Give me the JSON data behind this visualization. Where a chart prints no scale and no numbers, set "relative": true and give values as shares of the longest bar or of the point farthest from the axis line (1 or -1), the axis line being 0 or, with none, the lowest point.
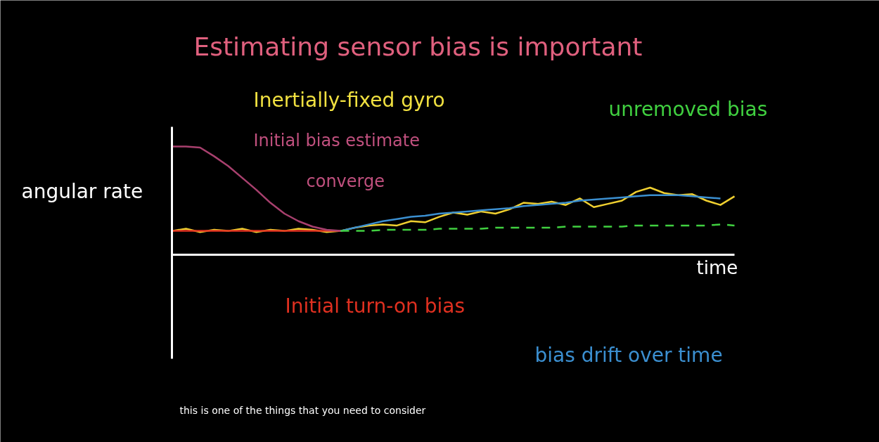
{
  "chart_data": {
    "type": "line",
    "relative": true,
    "title": "Estimating sensor bias is important",
    "subtitle": "Inertially-fixed gyro",
    "xlabel": "time",
    "ylabel": "angular rate",
    "categories": [
      null,
      null,
      null,
      null,
      null,
      null,
      null,
      null,
      null,
      null,
      null,
      null,
      null,
      null,
      null,
      null,
      null,
      null,
      null,
      null,
      null,
      null,
      null,
      null,
      null,
      null,
      null,
      null,
      null,
      null,
      null,
      null,
      null,
      null,
      null,
      null,
      null,
      null,
      null,
      null,
      null
    ],
    "annotations": [
      "Initial bias estimate",
      "converge",
      "Initial turn-on bias",
      "unremoved bias",
      "bias drift over time",
      "this is one of the things that you need to consider"
    ],
    "series": [
      {
        "color": "#f0d030",
        "values": [
          0.22,
          0.24,
          0.21,
          0.23,
          0.22,
          0.24,
          0.21,
          0.23,
          0.22,
          0.24,
          0.23,
          0.21,
          0.22,
          0.25,
          0.27,
          0.28,
          0.27,
          0.31,
          0.3,
          0.35,
          0.39,
          0.37,
          0.4,
          0.38,
          0.42,
          0.48,
          0.47,
          0.49,
          0.46,
          0.52,
          0.44,
          0.47,
          0.5,
          0.58,
          0.62,
          0.57,
          0.55,
          0.56,
          0.5,
          0.46,
          0.54
        ]
      },
      {
        "color": "#e03020",
        "values": [
          0.22,
          0.22,
          0.22,
          0.22,
          0.22,
          0.22,
          0.22,
          0.22,
          0.22,
          0.22,
          0.22,
          0.22,
          0.22,
          null,
          null,
          null,
          null,
          null,
          null,
          null,
          null,
          null,
          null,
          null,
          null,
          null,
          null,
          null,
          null,
          null,
          null,
          null,
          null,
          null,
          null,
          null,
          null,
          null,
          null,
          null,
          null
        ]
      },
      {
        "color": "#a8406e",
        "values": [
          1.0,
          1.0,
          0.99,
          0.91,
          0.82,
          0.71,
          0.6,
          0.48,
          0.38,
          0.31,
          0.26,
          0.23,
          0.22,
          null,
          null,
          null,
          null,
          null,
          null,
          null,
          null,
          null,
          null,
          null,
          null,
          null,
          null,
          null,
          null,
          null,
          null,
          null,
          null,
          null,
          null,
          null,
          null,
          null,
          null,
          null,
          null
        ]
      },
      {
        "color": "#3b8fd0",
        "values": [
          null,
          null,
          null,
          null,
          null,
          null,
          null,
          null,
          null,
          null,
          null,
          null,
          0.22,
          0.25,
          0.28,
          0.31,
          0.33,
          0.35,
          0.36,
          0.38,
          0.39,
          0.4,
          0.41,
          0.42,
          0.43,
          0.45,
          0.46,
          0.47,
          0.48,
          0.5,
          0.51,
          0.52,
          0.53,
          0.54,
          0.55,
          0.55,
          0.55,
          0.54,
          0.53,
          0.52,
          null
        ]
      },
      {
        "color": "#40d040",
        "line_style": "dashed",
        "values": [
          null,
          null,
          null,
          null,
          null,
          null,
          null,
          null,
          null,
          null,
          null,
          null,
          0.22,
          0.22,
          0.22,
          0.23,
          0.23,
          0.23,
          0.23,
          0.24,
          0.24,
          0.24,
          0.24,
          0.25,
          0.25,
          0.25,
          0.25,
          0.25,
          0.26,
          0.26,
          0.26,
          0.26,
          0.26,
          0.27,
          0.27,
          0.27,
          0.27,
          0.27,
          0.27,
          0.28,
          0.27
        ]
      }
    ]
  }
}
